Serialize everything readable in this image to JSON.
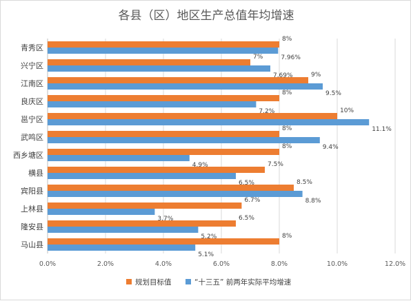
{
  "chart_data": {
    "type": "bar",
    "orientation": "horizontal",
    "title": "各县（区）地区生产总值年均增速",
    "categories": [
      "青秀区",
      "兴宁区",
      "江南区",
      "良庆区",
      "邕宁区",
      "武鸣区",
      "西乡塘区",
      "横县",
      "宾阳县",
      "上林县",
      "隆安县",
      "马山县"
    ],
    "series": [
      {
        "name": "规划目标值",
        "color": "#ED7D31",
        "values": [
          8,
          7,
          9,
          8,
          10,
          8,
          8,
          7.5,
          8.5,
          6.7,
          6.5,
          8
        ],
        "labels": [
          "8%",
          "7%",
          "9%",
          "8%",
          "10%",
          "8%",
          "8%",
          "7.5%",
          "8.5%",
          "6.7%",
          "6.5%",
          "8%"
        ]
      },
      {
        "name": "“十三五” 前两年实际平均增速",
        "color": "#5B9BD5",
        "values": [
          7.96,
          7.69,
          9.5,
          7.2,
          11.1,
          9.4,
          4.9,
          6.5,
          8.8,
          3.7,
          5.2,
          5.1
        ],
        "labels": [
          "7.96%",
          "7.69%",
          "9.5%",
          "7.2%",
          "11.1%",
          "9.4%",
          "4.9%",
          "6.5%",
          "8.8%",
          "3.7%",
          "5.2%",
          "5.1%"
        ]
      }
    ],
    "xlim": [
      0,
      12
    ],
    "xticks": [
      "0.0%",
      "2.0%",
      "4.0%",
      "6.0%",
      "8.0%",
      "10.0%",
      "12.0%"
    ],
    "grid": true,
    "legend_position": "bottom"
  }
}
